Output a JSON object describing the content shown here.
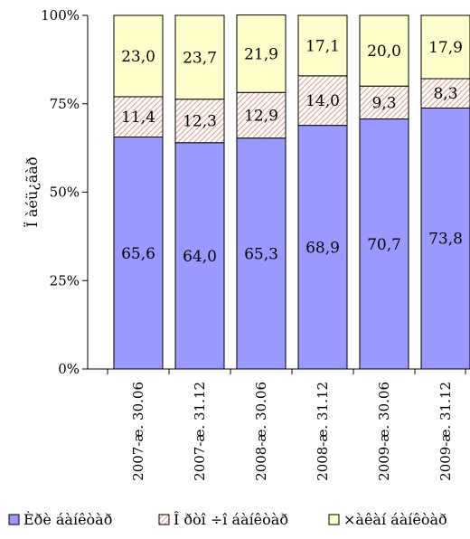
{
  "chart_data": {
    "type": "bar",
    "stacked": true,
    "percent": true,
    "ylabel": "Ï àéü¿ãàð",
    "yticks": [
      "0%",
      "25%",
      "50%",
      "75%",
      "100%"
    ],
    "ylim": [
      0,
      100
    ],
    "categories": [
      "2007-æ. 30.06",
      "2007-æ. 31.12",
      "2008-æ. 30.06",
      "2008-æ. 31.12",
      "2009-æ. 30.06",
      "2009-æ. 31.12"
    ],
    "series": [
      {
        "name": "Èðè áàíêòàð",
        "color": "#9999ff",
        "pattern": "solid",
        "values": [
          65.6,
          64.0,
          65.3,
          68.9,
          70.7,
          73.8
        ],
        "labels": [
          "65,6",
          "64,0",
          "65,3",
          "68,9",
          "70,7",
          "73,8"
        ]
      },
      {
        "name": "Î ðòî ÷î áàíêòàð",
        "color": "#ffffff",
        "pattern": "hatch",
        "values": [
          11.4,
          12.3,
          12.9,
          14.0,
          9.3,
          8.3
        ],
        "labels": [
          "11,4",
          "12,3",
          "12,9",
          "14,0",
          "9,3",
          "8,3"
        ]
      },
      {
        "name": "×àêàí áàíêòàð",
        "color": "#ffffcc",
        "pattern": "solid",
        "values": [
          23.0,
          23.7,
          21.9,
          17.1,
          20.0,
          17.9
        ],
        "labels": [
          "23,0",
          "23,7",
          "21,9",
          "17,1",
          "20,0",
          "17,9"
        ]
      }
    ],
    "legend_position": "bottom",
    "grid": false
  }
}
